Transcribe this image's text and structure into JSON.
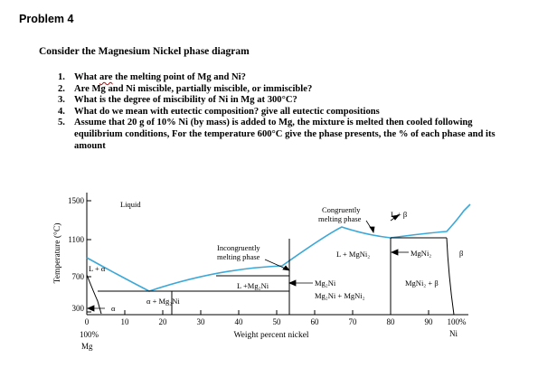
{
  "heading": "Problem 4",
  "intro": "Consider the Magnesium Nickel phase diagram",
  "questions": [
    {
      "num": "1.",
      "pre": "What ",
      "flagged": "are",
      "post": " the melting point of Mg and Ni?"
    },
    {
      "num": "2.",
      "text": "Are Mg and Ni miscible, partially miscible, or immiscible?"
    },
    {
      "num": "3.",
      "text": "What is the degree of miscibility of Ni in Mg at 300°C?"
    },
    {
      "num": "4.",
      "text": "What do we mean with eutectic composition? give all eutectic compositions"
    },
    {
      "num": "5.",
      "text": "Assume that 20 g of 10% Ni (by mass) is added to Mg, the mixture is melted then cooled following equilibrium conditions, For the temperature 600°C give the phase presents, the % of each phase and its amount"
    }
  ],
  "diagram": {
    "ylabel": "Temperature (°C)",
    "xlabel": "Weight percent nickel",
    "y_ticks": [
      "1500",
      "1100",
      "700",
      "300"
    ],
    "x_ticks": [
      "0",
      "10",
      "20",
      "30",
      "40",
      "50",
      "60",
      "70",
      "80",
      "90",
      "100%"
    ],
    "left_end": {
      "pct": "100%",
      "element": "Mg"
    },
    "right_end": {
      "element": "Ni"
    },
    "labels": {
      "liquid": "Liquid",
      "l_alpha": "L + α",
      "alpha": "α",
      "alpha_mg2ni": "α + Mg₂Ni",
      "incongruent_1": "Incongruently",
      "incongruent_2": "melting phase",
      "l_mg2ni": "L +Mg₂Ni",
      "congruent_1": "Congruently",
      "congruent_2": "melting phase",
      "l_mgni2": "L + MgNi₂",
      "l_beta": "L + β",
      "mg2ni": "Mg₂Ni",
      "mg2ni_mgni2": "Mg₂Ni + MgNi₂",
      "mgni2": "MgNi₂",
      "mgni2_beta": "MgNi₂ + β",
      "beta": "β"
    },
    "colors": {
      "liquidus": "#3aa8d8",
      "lines": "#000000"
    }
  }
}
